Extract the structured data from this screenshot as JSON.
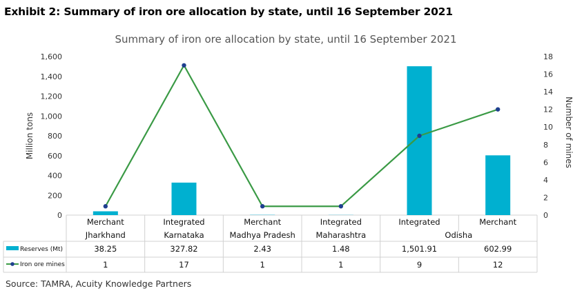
{
  "exhibit_title": "Exhibit 2: Summary of iron ore allocation by state, until 16 September 2021",
  "source": "Source: TAMRA, Acuity Knowledge Partners",
  "colors": {
    "bar": "#00b0d0",
    "line": "#3a9a45",
    "marker": "#1f3f8f",
    "grid": "#d0d0d0"
  },
  "chart_data": {
    "type": "bar",
    "title": "Summary of iron ore allocation by state, until 16 September 2021",
    "ylabel": "Million tons",
    "y2label": "Number of mines",
    "ylim": [
      0,
      1600
    ],
    "y2lim": [
      0,
      18
    ],
    "yticks": [
      "0",
      "200",
      "400",
      "600",
      "800",
      "1,000",
      "1,200",
      "1,400",
      "1,600"
    ],
    "y2ticks": [
      "0",
      "2",
      "4",
      "6",
      "8",
      "10",
      "12",
      "14",
      "16",
      "18"
    ],
    "categories": [
      "Merchant",
      "Integrated",
      "Merchant",
      "Integrated",
      "Integrated",
      "Merchant"
    ],
    "groups": [
      {
        "label": "Jharkhand",
        "span": 1
      },
      {
        "label": "Karnataka",
        "span": 1
      },
      {
        "label": "Madhya Pradesh",
        "span": 1
      },
      {
        "label": "Maharashtra",
        "span": 1
      },
      {
        "label": "Odisha",
        "span": 2
      }
    ],
    "series": [
      {
        "name": "Reserves (Mt)",
        "type": "bar",
        "axis": "left",
        "values": [
          38.25,
          327.82,
          2.43,
          1.48,
          1501.91,
          602.99
        ],
        "labels": [
          "38.25",
          "327.82",
          "2.43",
          "1.48",
          "1,501.91",
          "602.99"
        ]
      },
      {
        "name": "Iron ore mines",
        "type": "line",
        "axis": "right",
        "values": [
          1,
          17,
          1,
          1,
          9,
          12
        ],
        "labels": [
          "1",
          "17",
          "1",
          "1",
          "9",
          "12"
        ]
      }
    ],
    "legend": "data-table",
    "grid": false
  }
}
